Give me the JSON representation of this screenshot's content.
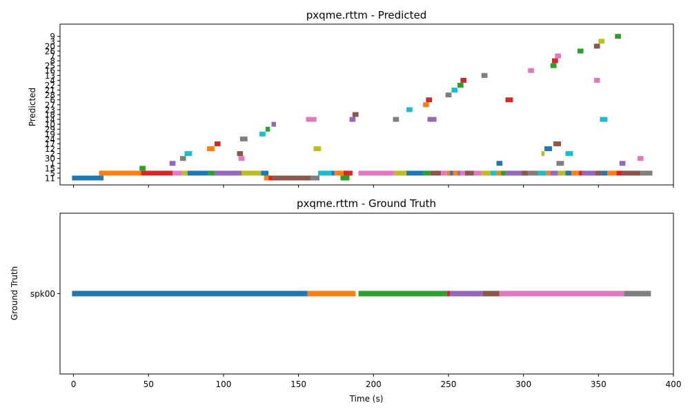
{
  "chart_data": [
    {
      "type": "timeline",
      "title": "pxqme.rttm - Predicted",
      "ylabel": "Predicted",
      "xlabel": "",
      "xlim": [
        -9,
        400
      ],
      "xticks": [
        0,
        50,
        100,
        150,
        200,
        250,
        300,
        350,
        400
      ],
      "show_xticklabels": false,
      "speakers": [
        "11",
        "5",
        "15",
        "1",
        "30",
        "2",
        "12",
        "17",
        "24",
        "19",
        "29",
        "10",
        "14",
        "18",
        "23",
        "27",
        "6",
        "28",
        "21",
        "22",
        "4",
        "13",
        "16",
        "25",
        "8",
        "7",
        "26",
        "20",
        "3",
        "9"
      ],
      "segments": [
        {
          "speaker": "11",
          "start": -1,
          "end": 20,
          "color": "#1f77b4"
        },
        {
          "speaker": "5",
          "start": 17,
          "end": 45,
          "color": "#ff7f0e"
        },
        {
          "speaker": "5",
          "start": 45,
          "end": 66,
          "color": "#d62728"
        },
        {
          "speaker": "5",
          "start": 66,
          "end": 72,
          "color": "#e377c2"
        },
        {
          "speaker": "5",
          "start": 72,
          "end": 76,
          "color": "#bcbd22"
        },
        {
          "speaker": "5",
          "start": 76,
          "end": 90,
          "color": "#1f77b4"
        },
        {
          "speaker": "5",
          "start": 90,
          "end": 94,
          "color": "#2ca02c"
        },
        {
          "speaker": "5",
          "start": 94,
          "end": 112,
          "color": "#9467bd"
        },
        {
          "speaker": "5",
          "start": 112,
          "end": 125,
          "color": "#bcbd22"
        },
        {
          "speaker": "5",
          "start": 125,
          "end": 130,
          "color": "#1f77b4"
        },
        {
          "speaker": "11",
          "start": 127,
          "end": 130,
          "color": "#ff7f0e"
        },
        {
          "speaker": "11",
          "start": 130,
          "end": 133,
          "color": "#d62728"
        },
        {
          "speaker": "11",
          "start": 133,
          "end": 158,
          "color": "#8c564b"
        },
        {
          "speaker": "11",
          "start": 158,
          "end": 164,
          "color": "#7f7f7f"
        },
        {
          "speaker": "5",
          "start": 163,
          "end": 172,
          "color": "#17becf"
        },
        {
          "speaker": "5",
          "start": 172,
          "end": 174,
          "color": "#1f77b4"
        },
        {
          "speaker": "5",
          "start": 174,
          "end": 180,
          "color": "#ff7f0e"
        },
        {
          "speaker": "5",
          "start": 180,
          "end": 186,
          "color": "#d62728"
        },
        {
          "speaker": "11",
          "start": 178,
          "end": 184,
          "color": "#2ca02c"
        },
        {
          "speaker": "5",
          "start": 190,
          "end": 214,
          "color": "#e377c2"
        },
        {
          "speaker": "5",
          "start": 214,
          "end": 222,
          "color": "#bcbd22"
        },
        {
          "speaker": "5",
          "start": 222,
          "end": 233,
          "color": "#1f77b4"
        },
        {
          "speaker": "5",
          "start": 233,
          "end": 238,
          "color": "#2ca02c"
        },
        {
          "speaker": "5",
          "start": 238,
          "end": 245,
          "color": "#8c564b"
        },
        {
          "speaker": "5",
          "start": 245,
          "end": 249,
          "color": "#e377c2"
        },
        {
          "speaker": "5",
          "start": 249,
          "end": 251,
          "color": "#ff7f0e"
        },
        {
          "speaker": "5",
          "start": 251,
          "end": 253,
          "color": "#1f77b4"
        },
        {
          "speaker": "5",
          "start": 253,
          "end": 256,
          "color": "#ff7f0e"
        },
        {
          "speaker": "5",
          "start": 256,
          "end": 258,
          "color": "#9467bd"
        },
        {
          "speaker": "5",
          "start": 258,
          "end": 261,
          "color": "#e377c2"
        },
        {
          "speaker": "5",
          "start": 261,
          "end": 267,
          "color": "#8c564b"
        },
        {
          "speaker": "5",
          "start": 267,
          "end": 272,
          "color": "#e377c2"
        },
        {
          "speaker": "5",
          "start": 272,
          "end": 278,
          "color": "#bcbd22"
        },
        {
          "speaker": "5",
          "start": 278,
          "end": 282,
          "color": "#17becf"
        },
        {
          "speaker": "5",
          "start": 282,
          "end": 285,
          "color": "#ff7f0e"
        },
        {
          "speaker": "5",
          "start": 285,
          "end": 288,
          "color": "#2ca02c"
        },
        {
          "speaker": "5",
          "start": 288,
          "end": 299,
          "color": "#9467bd"
        },
        {
          "speaker": "5",
          "start": 299,
          "end": 303,
          "color": "#8c564b"
        },
        {
          "speaker": "5",
          "start": 303,
          "end": 310,
          "color": "#7f7f7f"
        },
        {
          "speaker": "5",
          "start": 310,
          "end": 315,
          "color": "#17becf"
        },
        {
          "speaker": "5",
          "start": 315,
          "end": 318,
          "color": "#ff7f0e"
        },
        {
          "speaker": "5",
          "start": 318,
          "end": 323,
          "color": "#9467bd"
        },
        {
          "speaker": "5",
          "start": 323,
          "end": 328,
          "color": "#bcbd22"
        },
        {
          "speaker": "5",
          "start": 328,
          "end": 332,
          "color": "#1f77b4"
        },
        {
          "speaker": "5",
          "start": 332,
          "end": 337,
          "color": "#ff7f0e"
        },
        {
          "speaker": "5",
          "start": 337,
          "end": 339,
          "color": "#d62728"
        },
        {
          "speaker": "5",
          "start": 339,
          "end": 348,
          "color": "#9467bd"
        },
        {
          "speaker": "5",
          "start": 348,
          "end": 352,
          "color": "#8c564b"
        },
        {
          "speaker": "5",
          "start": 352,
          "end": 356,
          "color": "#1f77b4"
        },
        {
          "speaker": "5",
          "start": 356,
          "end": 362,
          "color": "#ff7f0e"
        },
        {
          "speaker": "5",
          "start": 362,
          "end": 366,
          "color": "#d62728"
        },
        {
          "speaker": "5",
          "start": 366,
          "end": 378,
          "color": "#8c564b"
        },
        {
          "speaker": "5",
          "start": 378,
          "end": 386,
          "color": "#7f7f7f"
        },
        {
          "speaker": "15",
          "start": 44,
          "end": 48,
          "color": "#2ca02c"
        },
        {
          "speaker": "1",
          "start": 64,
          "end": 68,
          "color": "#9467bd"
        },
        {
          "speaker": "1",
          "start": 282,
          "end": 286,
          "color": "#1f77b4"
        },
        {
          "speaker": "1",
          "start": 322,
          "end": 327,
          "color": "#7f7f7f"
        },
        {
          "speaker": "1",
          "start": 364,
          "end": 368,
          "color": "#9467bd"
        },
        {
          "speaker": "30",
          "start": 71,
          "end": 75,
          "color": "#7f7f7f"
        },
        {
          "speaker": "30",
          "start": 110,
          "end": 114,
          "color": "#e377c2"
        },
        {
          "speaker": "30",
          "start": 376,
          "end": 380,
          "color": "#e377c2"
        },
        {
          "speaker": "2",
          "start": 74,
          "end": 79,
          "color": "#17becf"
        },
        {
          "speaker": "2",
          "start": 109,
          "end": 113,
          "color": "#8c564b"
        },
        {
          "speaker": "2",
          "start": 312,
          "end": 314,
          "color": "#bcbd22"
        },
        {
          "speaker": "2",
          "start": 328,
          "end": 333,
          "color": "#17becf"
        },
        {
          "speaker": "12",
          "start": 89,
          "end": 94,
          "color": "#ff7f0e"
        },
        {
          "speaker": "12",
          "start": 160,
          "end": 165,
          "color": "#bcbd22"
        },
        {
          "speaker": "12",
          "start": 314,
          "end": 319,
          "color": "#1f77b4"
        },
        {
          "speaker": "17",
          "start": 94,
          "end": 98,
          "color": "#d62728"
        },
        {
          "speaker": "17",
          "start": 320,
          "end": 325,
          "color": "#8c564b"
        },
        {
          "speaker": "24",
          "start": 111,
          "end": 116,
          "color": "#7f7f7f"
        },
        {
          "speaker": "19",
          "start": 124,
          "end": 128,
          "color": "#17becf"
        },
        {
          "speaker": "29",
          "start": 128,
          "end": 131,
          "color": "#2ca02c"
        },
        {
          "speaker": "10",
          "start": 132,
          "end": 135,
          "color": "#9467bd"
        },
        {
          "speaker": "14",
          "start": 155,
          "end": 162,
          "color": "#e377c2"
        },
        {
          "speaker": "14",
          "start": 184,
          "end": 188,
          "color": "#9467bd"
        },
        {
          "speaker": "14",
          "start": 213,
          "end": 217,
          "color": "#7f7f7f"
        },
        {
          "speaker": "14",
          "start": 236,
          "end": 242,
          "color": "#9467bd"
        },
        {
          "speaker": "14",
          "start": 351,
          "end": 356,
          "color": "#17becf"
        },
        {
          "speaker": "18",
          "start": 186,
          "end": 190,
          "color": "#8c564b"
        },
        {
          "speaker": "23",
          "start": 222,
          "end": 226,
          "color": "#17becf"
        },
        {
          "speaker": "27",
          "start": 233,
          "end": 237,
          "color": "#ff7f0e"
        },
        {
          "speaker": "6",
          "start": 235,
          "end": 239,
          "color": "#d62728"
        },
        {
          "speaker": "6",
          "start": 288,
          "end": 293,
          "color": "#d62728"
        },
        {
          "speaker": "28",
          "start": 248,
          "end": 252,
          "color": "#7f7f7f"
        },
        {
          "speaker": "21",
          "start": 252,
          "end": 256,
          "color": "#17becf"
        },
        {
          "speaker": "22",
          "start": 256,
          "end": 260,
          "color": "#2ca02c"
        },
        {
          "speaker": "4",
          "start": 258,
          "end": 262,
          "color": "#d62728"
        },
        {
          "speaker": "4",
          "start": 347,
          "end": 351,
          "color": "#e377c2"
        },
        {
          "speaker": "13",
          "start": 272,
          "end": 276,
          "color": "#7f7f7f"
        },
        {
          "speaker": "16",
          "start": 303,
          "end": 307,
          "color": "#e377c2"
        },
        {
          "speaker": "25",
          "start": 318,
          "end": 322,
          "color": "#2ca02c"
        },
        {
          "speaker": "8",
          "start": 319,
          "end": 323,
          "color": "#d62728"
        },
        {
          "speaker": "7",
          "start": 321,
          "end": 325,
          "color": "#e377c2"
        },
        {
          "speaker": "26",
          "start": 336,
          "end": 340,
          "color": "#2ca02c"
        },
        {
          "speaker": "20",
          "start": 347,
          "end": 351,
          "color": "#8c564b"
        },
        {
          "speaker": "3",
          "start": 350,
          "end": 354,
          "color": "#bcbd22"
        },
        {
          "speaker": "9",
          "start": 361,
          "end": 365,
          "color": "#2ca02c"
        }
      ]
    },
    {
      "type": "timeline",
      "title": "pxqme.rttm - Ground Truth",
      "ylabel": "Ground Truth",
      "xlabel": "Time (s)",
      "xlim": [
        -9,
        400
      ],
      "xticks": [
        0,
        50,
        100,
        150,
        200,
        250,
        300,
        350,
        400
      ],
      "show_xticklabels": true,
      "speakers": [
        "spk00"
      ],
      "segments": [
        {
          "speaker": "spk00",
          "start": -1,
          "end": 156,
          "color": "#1f77b4"
        },
        {
          "speaker": "spk00",
          "start": 156,
          "end": 188,
          "color": "#ff7f0e"
        },
        {
          "speaker": "spk00",
          "start": 190,
          "end": 249,
          "color": "#2ca02c"
        },
        {
          "speaker": "spk00",
          "start": 249,
          "end": 251,
          "color": "#d62728"
        },
        {
          "speaker": "spk00",
          "start": 251,
          "end": 273,
          "color": "#9467bd"
        },
        {
          "speaker": "spk00",
          "start": 273,
          "end": 284,
          "color": "#8c564b"
        },
        {
          "speaker": "spk00",
          "start": 284,
          "end": 367,
          "color": "#e377c2"
        },
        {
          "speaker": "spk00",
          "start": 367,
          "end": 385,
          "color": "#7f7f7f"
        }
      ]
    }
  ]
}
